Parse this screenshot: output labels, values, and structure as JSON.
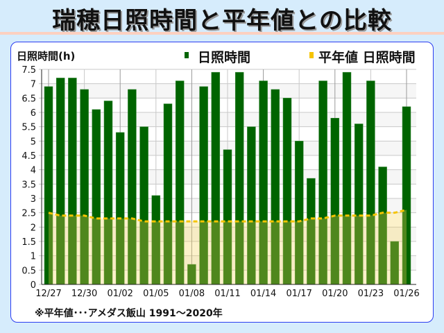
{
  "title": "瑞穂日照時間と平年値との比較",
  "footnote": "※平年値･･･アメダス飯山 1991〜2020年",
  "chart_data": {
    "type": "bar",
    "ylabel": "日照時間(h)",
    "ylim": [
      0,
      7.5
    ],
    "yticks": [
      "0",
      "0.5",
      "1",
      "1.5",
      "2",
      "2.5",
      "3",
      "3.5",
      "4",
      "4.5",
      "5",
      "5.5",
      "6",
      "6.5",
      "7",
      "7.5"
    ],
    "grid": true,
    "legend_position": "top",
    "categories": [
      "12/27",
      "12/28",
      "12/29",
      "12/30",
      "12/31",
      "01/01",
      "01/02",
      "01/03",
      "01/04",
      "01/05",
      "01/06",
      "01/07",
      "01/08",
      "01/09",
      "01/10",
      "01/11",
      "01/12",
      "01/13",
      "01/14",
      "01/15",
      "01/16",
      "01/17",
      "01/18",
      "01/19",
      "01/20",
      "01/21",
      "01/22",
      "01/23",
      "01/24",
      "01/25",
      "01/26"
    ],
    "xtick_labels": [
      "12/27",
      "12/30",
      "01/02",
      "01/05",
      "01/08",
      "01/11",
      "01/14",
      "01/17",
      "01/20",
      "01/23",
      "01/26"
    ],
    "series": [
      {
        "name": "日照時間",
        "type": "bar",
        "color": "#006400",
        "values": [
          6.9,
          7.2,
          7.2,
          6.8,
          6.1,
          6.4,
          5.3,
          6.8,
          5.5,
          3.1,
          6.3,
          7.1,
          0.7,
          6.9,
          7.4,
          4.7,
          7.4,
          5.5,
          7.1,
          6.8,
          6.5,
          5.0,
          3.7,
          7.1,
          5.8,
          7.4,
          5.6,
          7.1,
          4.1,
          1.5,
          6.2
        ]
      },
      {
        "name": "平年値 日照時間",
        "type": "line",
        "color": "#f5c400",
        "values": [
          2.5,
          2.4,
          2.4,
          2.4,
          2.3,
          2.3,
          2.3,
          2.3,
          2.2,
          2.2,
          2.2,
          2.2,
          2.2,
          2.2,
          2.2,
          2.2,
          2.2,
          2.2,
          2.2,
          2.2,
          2.2,
          2.2,
          2.3,
          2.3,
          2.4,
          2.4,
          2.4,
          2.4,
          2.5,
          2.5,
          2.6
        ]
      }
    ]
  }
}
